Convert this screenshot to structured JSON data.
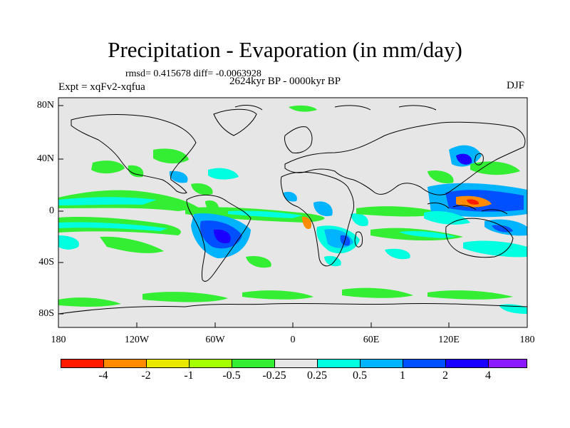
{
  "header": {
    "title": "Precipitation - Evaporation (in mm/day)",
    "stats": "rmsd= 0.415678  diff= -0.0063928",
    "period": "2624kyr BP - 0000kyr BP",
    "experiment": "Expt = xqFv2-xqfua",
    "season": "DJF"
  },
  "map": {
    "land_color": "#e6e6e6",
    "lat_labels": [
      "80N",
      "40N",
      "0",
      "40S",
      "80S"
    ],
    "lon_labels": [
      "180",
      "120W",
      "60W",
      "0",
      "60E",
      "120E",
      "180"
    ]
  },
  "colorbar": {
    "colors": [
      "#ff1a00",
      "#ff8c00",
      "#e8e800",
      "#a6ff00",
      "#33ee33",
      "#e6e6e6",
      "#00ffe0",
      "#00b4ff",
      "#0050ff",
      "#1a00ff",
      "#8c1aff"
    ],
    "labels": [
      "-4",
      "-2",
      "-1",
      "-0.5",
      "-0.25",
      "0.25",
      "0.5",
      "1",
      "2",
      "4"
    ]
  }
}
